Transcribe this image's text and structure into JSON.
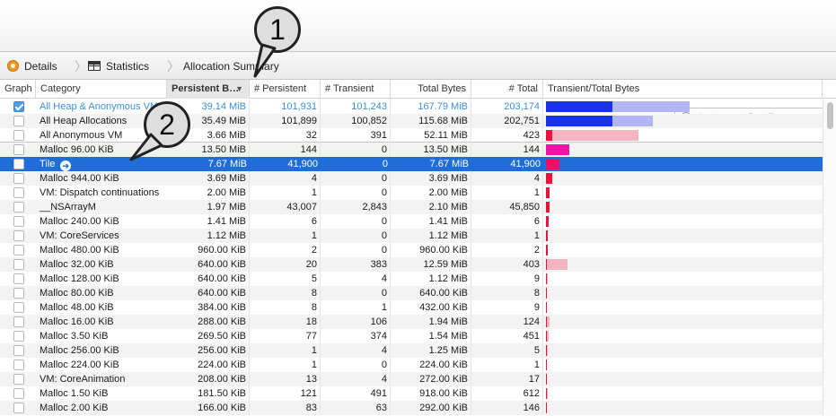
{
  "jumpbar": {
    "details_label": "Details",
    "statistics_label": "Statistics",
    "summary_label": "Allocation Summary"
  },
  "search": {
    "placeholder": "Instrument Detail"
  },
  "columns": {
    "graph": "Graph",
    "category": "Category",
    "persistent_bytes": "Persistent B…",
    "num_persistent": "# Persistent",
    "num_transient": "# Transient",
    "total_bytes": "Total Bytes",
    "num_total": "# Total",
    "transient_total": "Transient/Total Bytes"
  },
  "callouts": {
    "one": "1",
    "two": "2"
  },
  "colors": {
    "persistent_bar": "#1733e3",
    "transient_bar": "#b3b6f4",
    "vm_persistent_bar": "#e8133c",
    "vm_transient_bar": "#f5b4c2",
    "malloc_persistent_bar": "#ed12a9",
    "tile_persistent_bar": "#e8125f",
    "selection": "#1f6ed7"
  },
  "rows": [
    {
      "graph": true,
      "category": "All Heap & Anonymous VM",
      "persistent_bytes": "39.14 MiB",
      "num_persistent": "101,931",
      "num_transient": "101,243",
      "total_bytes": "167.79 MiB",
      "num_total": "203,174",
      "bar_persistent": 0.0,
      "bar_total": 0.0,
      "bar_color": "#1733e3",
      "bar_light": "#b3b6f4"
    },
    {
      "graph": false,
      "category": "All Heap Allocations",
      "persistent_bytes": "35.49 MiB",
      "num_persistent": "101,899",
      "num_transient": "100,852",
      "total_bytes": "115.68 MiB",
      "num_total": "202,751",
      "bar_persistent": 0.0,
      "bar_total": 0.0,
      "bar_color": "#1733e3",
      "bar_light": "#b3b6f4"
    },
    {
      "graph": false,
      "category": "All Anonymous VM",
      "persistent_bytes": "3.66 MiB",
      "num_persistent": "32",
      "num_transient": "391",
      "total_bytes": "52.11 MiB",
      "num_total": "423",
      "bar_persistent": 0.0,
      "bar_total": 0.0,
      "bar_color": "#e8133c",
      "bar_light": "#f5b4c2"
    },
    {
      "graph": false,
      "category": "Malloc 96.00 KiB",
      "persistent_bytes": "13.50 MiB",
      "num_persistent": "144",
      "num_transient": "0",
      "total_bytes": "13.50 MiB",
      "num_total": "144",
      "bar_persistent": 0.0,
      "bar_total": 0.0,
      "bar_color": "#ed12a9",
      "bar_light": "#f5b4c2"
    },
    {
      "graph": false,
      "category": "Tile",
      "persistent_bytes": "7.67 MiB",
      "num_persistent": "41,900",
      "num_transient": "0",
      "total_bytes": "7.67 MiB",
      "num_total": "41,900",
      "bar_persistent": 0.0,
      "bar_total": 0.0,
      "bar_color": "#e8125f",
      "bar_light": "#f5b4c2"
    },
    {
      "graph": false,
      "category": "Malloc 944.00 KiB",
      "persistent_bytes": "3.69 MiB",
      "num_persistent": "4",
      "num_transient": "0",
      "total_bytes": "3.69 MiB",
      "num_total": "4",
      "bar_persistent": 0.0,
      "bar_total": 0.0,
      "bar_color": "#e8133c",
      "bar_light": "#f5b4c2"
    },
    {
      "graph": false,
      "category": "VM: Dispatch continuations",
      "persistent_bytes": "2.00 MiB",
      "num_persistent": "1",
      "num_transient": "0",
      "total_bytes": "2.00 MiB",
      "num_total": "1",
      "bar_persistent": 0.0,
      "bar_total": 0.0,
      "bar_color": "#e8133c",
      "bar_light": "#f5b4c2"
    },
    {
      "graph": false,
      "category": "__NSArrayM",
      "persistent_bytes": "1.97 MiB",
      "num_persistent": "43,007",
      "num_transient": "2,843",
      "total_bytes": "2.10 MiB",
      "num_total": "45,850",
      "bar_persistent": 0.0,
      "bar_total": 0.0,
      "bar_color": "#e8133c",
      "bar_light": "#f5b4c2"
    },
    {
      "graph": false,
      "category": "Malloc 240.00 KiB",
      "persistent_bytes": "1.41 MiB",
      "num_persistent": "6",
      "num_transient": "0",
      "total_bytes": "1.41 MiB",
      "num_total": "6",
      "bar_persistent": 0.0,
      "bar_total": 0.0,
      "bar_color": "#e8133c",
      "bar_light": "#f5b4c2"
    },
    {
      "graph": false,
      "category": "VM: CoreServices",
      "persistent_bytes": "1.12 MiB",
      "num_persistent": "1",
      "num_transient": "0",
      "total_bytes": "1.12 MiB",
      "num_total": "1",
      "bar_persistent": 0.0,
      "bar_total": 0.0,
      "bar_color": "#e8133c",
      "bar_light": "#f5b4c2"
    },
    {
      "graph": false,
      "category": "Malloc 480.00 KiB",
      "persistent_bytes": "960.00 KiB",
      "num_persistent": "2",
      "num_transient": "0",
      "total_bytes": "960.00 KiB",
      "num_total": "2",
      "bar_persistent": 0.0,
      "bar_total": 0.0,
      "bar_color": "#e8133c",
      "bar_light": "#f5b4c2"
    },
    {
      "graph": false,
      "category": "Malloc 32.00 KiB",
      "persistent_bytes": "640.00 KiB",
      "num_persistent": "20",
      "num_transient": "383",
      "total_bytes": "12.59 MiB",
      "num_total": "403",
      "bar_persistent": 0.0,
      "bar_total": 0.0,
      "bar_color": "#e8133c",
      "bar_light": "#f5b4c2"
    },
    {
      "graph": false,
      "category": "Malloc 128.00 KiB",
      "persistent_bytes": "640.00 KiB",
      "num_persistent": "5",
      "num_transient": "4",
      "total_bytes": "1.12 MiB",
      "num_total": "9",
      "bar_persistent": 0.0,
      "bar_total": 0.0,
      "bar_color": "#e8133c",
      "bar_light": "#f5b4c2"
    },
    {
      "graph": false,
      "category": "Malloc 80.00 KiB",
      "persistent_bytes": "640.00 KiB",
      "num_persistent": "8",
      "num_transient": "0",
      "total_bytes": "640.00 KiB",
      "num_total": "8",
      "bar_persistent": 0.0,
      "bar_total": 0.0,
      "bar_color": "#e8133c",
      "bar_light": "#f5b4c2"
    },
    {
      "graph": false,
      "category": "Malloc 48.00 KiB",
      "persistent_bytes": "384.00 KiB",
      "num_persistent": "8",
      "num_transient": "1",
      "total_bytes": "432.00 KiB",
      "num_total": "9",
      "bar_persistent": 0.0,
      "bar_total": 0.0,
      "bar_color": "#e8133c",
      "bar_light": "#f5b4c2"
    },
    {
      "graph": false,
      "category": "Malloc 16.00 KiB",
      "persistent_bytes": "288.00 KiB",
      "num_persistent": "18",
      "num_transient": "106",
      "total_bytes": "1.94 MiB",
      "num_total": "124",
      "bar_persistent": 0.0,
      "bar_total": 0.0,
      "bar_color": "#e8133c",
      "bar_light": "#f5b4c2"
    },
    {
      "graph": false,
      "category": "Malloc 3.50 KiB",
      "persistent_bytes": "269.50 KiB",
      "num_persistent": "77",
      "num_transient": "374",
      "total_bytes": "1.54 MiB",
      "num_total": "451",
      "bar_persistent": 0.0,
      "bar_total": 0.0,
      "bar_color": "#e8133c",
      "bar_light": "#f5b4c2"
    },
    {
      "graph": false,
      "category": "Malloc 256.00 KiB",
      "persistent_bytes": "256.00 KiB",
      "num_persistent": "1",
      "num_transient": "4",
      "total_bytes": "1.25 MiB",
      "num_total": "5",
      "bar_persistent": 0.0,
      "bar_total": 0.0,
      "bar_color": "#e8133c",
      "bar_light": "#f5b4c2"
    },
    {
      "graph": false,
      "category": "Malloc 224.00 KiB",
      "persistent_bytes": "224.00 KiB",
      "num_persistent": "1",
      "num_transient": "0",
      "total_bytes": "224.00 KiB",
      "num_total": "1",
      "bar_persistent": 0.0,
      "bar_total": 0.0,
      "bar_color": "#e8133c",
      "bar_light": "#f5b4c2"
    },
    {
      "graph": false,
      "category": "VM: CoreAnimation",
      "persistent_bytes": "208.00 KiB",
      "num_persistent": "13",
      "num_transient": "4",
      "total_bytes": "272.00 KiB",
      "num_total": "17",
      "bar_persistent": 0.0,
      "bar_total": 0.0,
      "bar_color": "#e8133c",
      "bar_light": "#f5b4c2"
    },
    {
      "graph": false,
      "category": "Malloc 1.50 KiB",
      "persistent_bytes": "181.50 KiB",
      "num_persistent": "121",
      "num_transient": "491",
      "total_bytes": "918.00 KiB",
      "num_total": "612",
      "bar_persistent": 0.0,
      "bar_total": 0.0,
      "bar_color": "#e8133c",
      "bar_light": "#f5b4c2"
    },
    {
      "graph": false,
      "category": "Malloc 2.00 KiB",
      "persistent_bytes": "166.00 KiB",
      "num_persistent": "83",
      "num_transient": "63",
      "total_bytes": "292.00 KiB",
      "num_total": "146",
      "bar_persistent": 0.0,
      "bar_total": 0.0,
      "bar_color": "#e8133c",
      "bar_light": "#f5b4c2"
    }
  ],
  "bars": [
    {
      "persistent_frac": 0.462,
      "total_frac": 1.0
    },
    {
      "persistent_frac": 0.462,
      "total_frac": 0.743
    },
    {
      "persistent_frac": 0.043,
      "total_frac": 0.643
    },
    {
      "persistent_frac": 0.162,
      "total_frac": 0.162
    },
    {
      "persistent_frac": 0.092,
      "total_frac": 0.092
    },
    {
      "persistent_frac": 0.044,
      "total_frac": 0.044
    },
    {
      "persistent_frac": 0.024,
      "total_frac": 0.024
    },
    {
      "persistent_frac": 0.024,
      "total_frac": 0.026
    },
    {
      "persistent_frac": 0.017,
      "total_frac": 0.017
    },
    {
      "persistent_frac": 0.013,
      "total_frac": 0.013
    },
    {
      "persistent_frac": 0.011,
      "total_frac": 0.011
    },
    {
      "persistent_frac": 0.008,
      "total_frac": 0.151
    },
    {
      "persistent_frac": 0.008,
      "total_frac": 0.013
    },
    {
      "persistent_frac": 0.008,
      "total_frac": 0.008
    },
    {
      "persistent_frac": 0.005,
      "total_frac": 0.005
    },
    {
      "persistent_frac": 0.003,
      "total_frac": 0.023
    },
    {
      "persistent_frac": 0.003,
      "total_frac": 0.018
    },
    {
      "persistent_frac": 0.003,
      "total_frac": 0.015
    },
    {
      "persistent_frac": 0.003,
      "total_frac": 0.003
    },
    {
      "persistent_frac": 0.002,
      "total_frac": 0.003
    },
    {
      "persistent_frac": 0.002,
      "total_frac": 0.011
    },
    {
      "persistent_frac": 0.002,
      "total_frac": 0.003
    }
  ],
  "selected_row": 4,
  "first_row_highlighted": 0,
  "bar_colors_per_row": [
    "#1733e3",
    "#1733e3",
    "#e8133c",
    "#ed12a9",
    "#e8125f",
    "#e8133c",
    "#e8133c",
    "#e8133c",
    "#e8133c",
    "#e8133c",
    "#e8133c",
    "#e8133c",
    "#e8133c",
    "#e8133c",
    "#e8133c",
    "#e8133c",
    "#e8133c",
    "#e8133c",
    "#e8133c",
    "#e8133c",
    "#e8133c",
    "#e8133c"
  ]
}
